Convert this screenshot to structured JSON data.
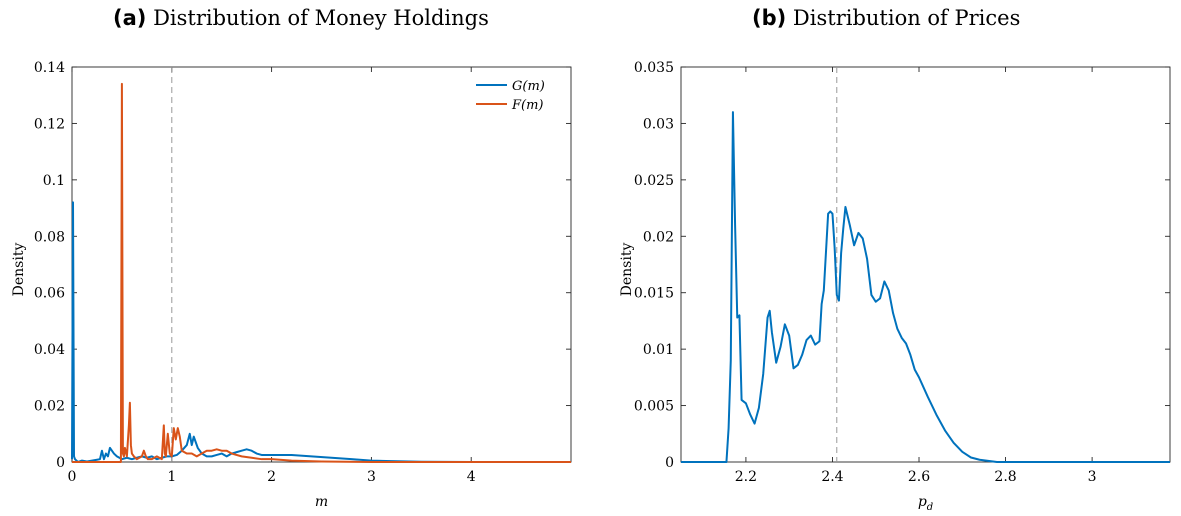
{
  "panels": [
    {
      "tag": "(a)",
      "title": "Distribution of Money Holdings"
    },
    {
      "tag": "(b)",
      "title": "Distribution of Prices"
    }
  ],
  "chart_data": [
    {
      "type": "line",
      "title": "Distribution of Money Holdings",
      "xlabel": "m",
      "ylabel": "Density",
      "xlim": [
        0,
        5
      ],
      "ylim": [
        0,
        0.14
      ],
      "xticks": [
        0,
        1,
        2,
        3,
        4
      ],
      "xtick_labels": [
        "0",
        "1",
        "2",
        "3",
        "4"
      ],
      "yticks": [
        0,
        0.02,
        0.04,
        0.06,
        0.08,
        0.1,
        0.12,
        0.14
      ],
      "ytick_labels": [
        "0",
        "0.02",
        "0.04",
        "0.06",
        "0.08",
        "0.1",
        "0.12",
        "0.14"
      ],
      "reference_line_x": 1,
      "grid": false,
      "legend_position": "top-right",
      "colors": {
        "G": "#0072BD",
        "F": "#D95319",
        "reference": "#999999"
      },
      "series": [
        {
          "name": "G(m)",
          "x": [
            0,
            0.01,
            0.02,
            0.03,
            0.06,
            0.1,
            0.15,
            0.2,
            0.25,
            0.28,
            0.3,
            0.32,
            0.34,
            0.36,
            0.38,
            0.4,
            0.42,
            0.45,
            0.5,
            0.55,
            0.6,
            0.65,
            0.7,
            0.75,
            0.8,
            0.85,
            0.9,
            0.95,
            1.0,
            1.05,
            1.1,
            1.15,
            1.18,
            1.2,
            1.22,
            1.24,
            1.26,
            1.28,
            1.3,
            1.35,
            1.4,
            1.45,
            1.5,
            1.55,
            1.6,
            1.65,
            1.7,
            1.75,
            1.8,
            1.85,
            1.9,
            2.0,
            2.2,
            2.4,
            2.6,
            2.8,
            3.0,
            3.2,
            3.5,
            4.0,
            5.0
          ],
          "y": [
            0.001,
            0.092,
            0.002,
            0.001,
            0.0,
            0.0005,
            0.0002,
            0.0005,
            0.0008,
            0.001,
            0.004,
            0.001,
            0.003,
            0.002,
            0.005,
            0.004,
            0.003,
            0.002,
            0.001,
            0.0015,
            0.001,
            0.0015,
            0.002,
            0.0015,
            0.002,
            0.001,
            0.0015,
            0.002,
            0.002,
            0.0025,
            0.004,
            0.006,
            0.01,
            0.006,
            0.009,
            0.007,
            0.005,
            0.004,
            0.003,
            0.002,
            0.002,
            0.0025,
            0.003,
            0.002,
            0.003,
            0.0035,
            0.004,
            0.0045,
            0.004,
            0.003,
            0.0025,
            0.0025,
            0.0025,
            0.002,
            0.0015,
            0.001,
            0.0005,
            0.0003,
            0.0001,
            0.0,
            0.0
          ]
        },
        {
          "name": "F(m)",
          "x": [
            0,
            0.45,
            0.49,
            0.5,
            0.51,
            0.52,
            0.53,
            0.55,
            0.57,
            0.58,
            0.59,
            0.6,
            0.62,
            0.65,
            0.7,
            0.72,
            0.74,
            0.76,
            0.8,
            0.85,
            0.9,
            0.92,
            0.93,
            0.94,
            0.96,
            0.98,
            1.0,
            1.02,
            1.04,
            1.06,
            1.08,
            1.1,
            1.15,
            1.2,
            1.25,
            1.3,
            1.35,
            1.4,
            1.45,
            1.5,
            1.55,
            1.6,
            1.7,
            1.8,
            1.9,
            2.0,
            2.2,
            2.5,
            3.0,
            3.5,
            4.0,
            5.0
          ],
          "y": [
            0.0,
            0.0,
            0.0,
            0.134,
            0.003,
            0.002,
            0.005,
            0.002,
            0.013,
            0.021,
            0.006,
            0.003,
            0.002,
            0.001,
            0.002,
            0.004,
            0.002,
            0.001,
            0.001,
            0.002,
            0.001,
            0.013,
            0.003,
            0.002,
            0.01,
            0.003,
            0.002,
            0.012,
            0.008,
            0.012,
            0.009,
            0.004,
            0.003,
            0.003,
            0.002,
            0.003,
            0.004,
            0.004,
            0.0045,
            0.004,
            0.004,
            0.003,
            0.002,
            0.0015,
            0.001,
            0.001,
            0.0005,
            0.0002,
            0.0,
            0.0,
            0.0,
            0.0
          ]
        }
      ]
    },
    {
      "type": "line",
      "title": "Distribution of Prices",
      "xlabel": "p_d",
      "ylabel": "Density",
      "xlim": [
        2.05,
        3.18
      ],
      "ylim": [
        0,
        0.035
      ],
      "xticks": [
        2.2,
        2.4,
        2.6,
        2.8,
        3.0
      ],
      "xtick_labels": [
        "2.2",
        "2.4",
        "2.6",
        "2.8",
        "3"
      ],
      "yticks": [
        0,
        0.005,
        0.01,
        0.015,
        0.02,
        0.025,
        0.03,
        0.035
      ],
      "ytick_labels": [
        "0",
        "0.005",
        "0.01",
        "0.015",
        "0.02",
        "0.025",
        "0.03",
        "0.035"
      ],
      "reference_line_x": 2.41,
      "grid": false,
      "colors": {
        "line": "#0072BD",
        "reference": "#999999"
      },
      "series": [
        {
          "name": "",
          "x": [
            2.05,
            2.15,
            2.155,
            2.16,
            2.165,
            2.17,
            2.175,
            2.18,
            2.185,
            2.19,
            2.2,
            2.21,
            2.22,
            2.23,
            2.24,
            2.25,
            2.255,
            2.26,
            2.27,
            2.28,
            2.29,
            2.3,
            2.31,
            2.32,
            2.33,
            2.34,
            2.35,
            2.36,
            2.37,
            2.375,
            2.38,
            2.39,
            2.395,
            2.4,
            2.405,
            2.41,
            2.415,
            2.42,
            2.425,
            2.43,
            2.44,
            2.45,
            2.46,
            2.47,
            2.48,
            2.49,
            2.5,
            2.51,
            2.52,
            2.53,
            2.54,
            2.55,
            2.56,
            2.57,
            2.58,
            2.59,
            2.6,
            2.62,
            2.64,
            2.66,
            2.68,
            2.7,
            2.72,
            2.74,
            2.76,
            2.78,
            2.8,
            2.85,
            2.9,
            3.0,
            3.18
          ],
          "y": [
            0.0,
            0.0,
            0.0,
            0.003,
            0.009,
            0.031,
            0.021,
            0.0128,
            0.013,
            0.0055,
            0.0052,
            0.0042,
            0.0034,
            0.0048,
            0.0078,
            0.0128,
            0.0134,
            0.0115,
            0.0088,
            0.0102,
            0.0122,
            0.0112,
            0.0083,
            0.0086,
            0.0095,
            0.0108,
            0.0112,
            0.0104,
            0.0107,
            0.014,
            0.0152,
            0.022,
            0.0222,
            0.022,
            0.019,
            0.0148,
            0.0143,
            0.0185,
            0.0207,
            0.0226,
            0.021,
            0.0192,
            0.0203,
            0.0198,
            0.018,
            0.0148,
            0.0142,
            0.0145,
            0.016,
            0.0152,
            0.0132,
            0.0118,
            0.011,
            0.0105,
            0.0095,
            0.0082,
            0.0075,
            0.0058,
            0.0042,
            0.0028,
            0.0017,
            0.0009,
            0.0004,
            0.0002,
            0.0001,
            0.0,
            0.0,
            0.0,
            0.0,
            0.0,
            0.0
          ]
        }
      ]
    }
  ]
}
